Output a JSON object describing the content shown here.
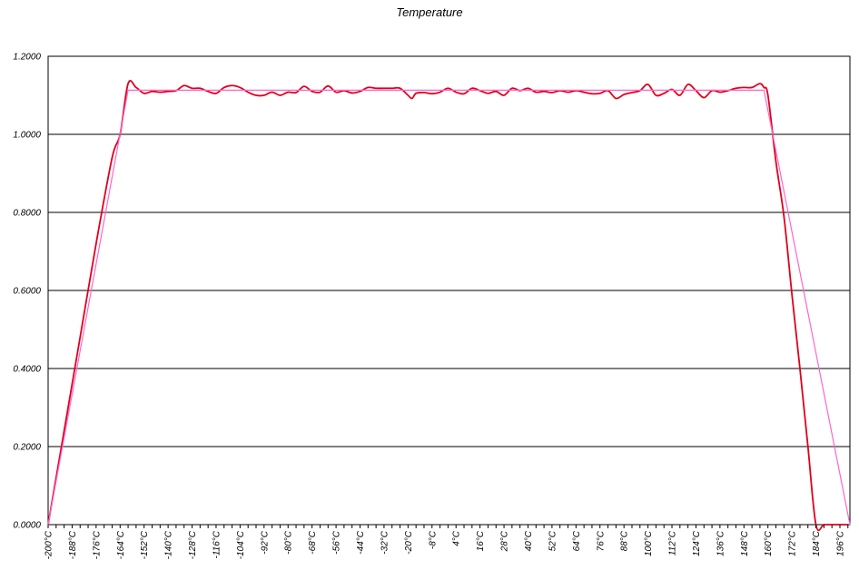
{
  "chart_data": {
    "type": "line",
    "title": "Temperature",
    "xlabel": "",
    "ylabel": "",
    "ylim": [
      0,
      1.2
    ],
    "y_ticks": [
      "0.0000",
      "0.2000",
      "0.4000",
      "0.6000",
      "0.8000",
      "1.0000",
      "1.2000"
    ],
    "x_unit": "°C",
    "xlim": [
      -200,
      201
    ],
    "x_tick_values": [
      -200,
      -188,
      -176,
      -164,
      -152,
      -140,
      -128,
      -116,
      -104,
      -92,
      -80,
      -68,
      -56,
      -44,
      -32,
      -20,
      -8,
      4,
      16,
      28,
      40,
      52,
      64,
      76,
      88,
      100,
      112,
      124,
      136,
      148,
      160,
      172,
      184,
      196
    ],
    "grid": true,
    "legend": "none",
    "series": [
      {
        "color": "#e0001b",
        "x": [
          -200,
          -192,
          -184,
          -176,
          -168,
          -164,
          -160,
          -156,
          -152,
          -148,
          -144,
          -140,
          -136,
          -132,
          -128,
          -124,
          -120,
          -116,
          -112,
          -108,
          -104,
          -100,
          -96,
          -92,
          -88,
          -84,
          -80,
          -76,
          -72,
          -68,
          -64,
          -60,
          -56,
          -52,
          -48,
          -44,
          -40,
          -36,
          -32,
          -28,
          -24,
          -20,
          -18,
          -16,
          -12,
          -8,
          -4,
          0,
          4,
          8,
          12,
          16,
          20,
          24,
          28,
          32,
          36,
          40,
          44,
          48,
          52,
          56,
          60,
          64,
          68,
          72,
          76,
          80,
          84,
          88,
          92,
          96,
          100,
          104,
          108,
          112,
          116,
          120,
          124,
          128,
          132,
          136,
          140,
          144,
          148,
          152,
          156,
          158,
          160,
          164,
          168,
          172,
          176,
          180,
          184,
          188,
          192,
          196,
          200
        ],
        "y": [
          0.0,
          0.24,
          0.48,
          0.72,
          0.94,
          1.0,
          1.13,
          1.12,
          1.105,
          1.11,
          1.108,
          1.11,
          1.112,
          1.125,
          1.118,
          1.118,
          1.11,
          1.105,
          1.12,
          1.125,
          1.12,
          1.108,
          1.1,
          1.1,
          1.108,
          1.1,
          1.108,
          1.107,
          1.123,
          1.11,
          1.108,
          1.124,
          1.108,
          1.112,
          1.106,
          1.11,
          1.12,
          1.118,
          1.118,
          1.118,
          1.118,
          1.1,
          1.092,
          1.105,
          1.107,
          1.104,
          1.108,
          1.118,
          1.108,
          1.104,
          1.118,
          1.112,
          1.105,
          1.11,
          1.1,
          1.118,
          1.112,
          1.118,
          1.108,
          1.11,
          1.107,
          1.112,
          1.108,
          1.112,
          1.108,
          1.104,
          1.105,
          1.112,
          1.092,
          1.102,
          1.107,
          1.112,
          1.128,
          1.1,
          1.105,
          1.115,
          1.1,
          1.128,
          1.112,
          1.094,
          1.112,
          1.108,
          1.112,
          1.118,
          1.12,
          1.12,
          1.13,
          1.12,
          1.1,
          0.93,
          0.79,
          0.59,
          0.4,
          0.2,
          0.0,
          0.0,
          0.0,
          0.0,
          0.0
        ]
      },
      {
        "color": "#ff66cc",
        "x": [
          -200,
          -160,
          158,
          201
        ],
        "y": [
          0.0,
          1.113,
          1.113,
          0.0
        ]
      }
    ]
  }
}
